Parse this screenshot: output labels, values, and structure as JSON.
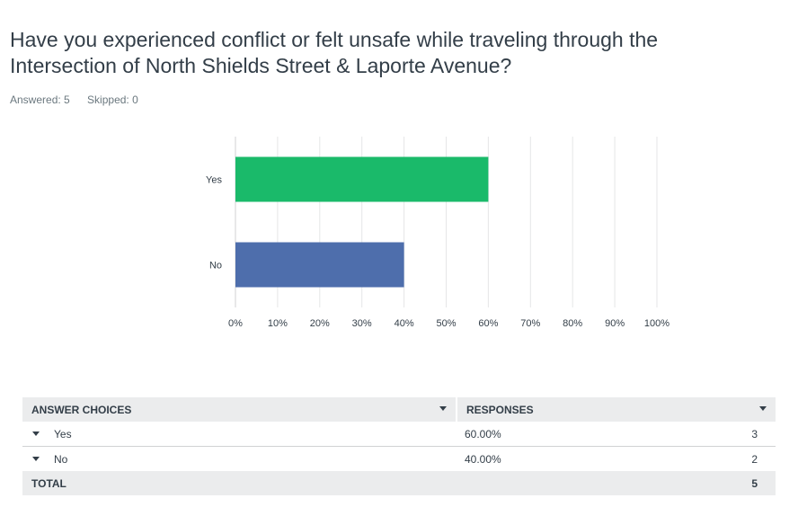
{
  "question": {
    "title": "Have you experienced conflict or felt unsafe while traveling through the Intersection of North Shields Street & Laporte Avenue?"
  },
  "stats": {
    "answered": "Answered: 5",
    "skipped": "Skipped: 0"
  },
  "chart_data": {
    "type": "bar",
    "orientation": "horizontal",
    "categories": [
      "Yes",
      "No"
    ],
    "values": [
      60,
      40
    ],
    "colors": [
      "#1aba6a",
      "#4e6eac"
    ],
    "xlim": [
      0,
      100
    ],
    "x_ticks": [
      "0%",
      "10%",
      "20%",
      "30%",
      "40%",
      "50%",
      "60%",
      "70%",
      "80%",
      "90%",
      "100%"
    ],
    "grid": true,
    "title": "",
    "xlabel": "",
    "ylabel": ""
  },
  "table": {
    "headers": {
      "choices": "ANSWER CHOICES",
      "responses": "RESPONSES"
    },
    "rows": [
      {
        "choice": "Yes",
        "percent": "60.00%",
        "count": "3"
      },
      {
        "choice": "No",
        "percent": "40.00%",
        "count": "2"
      }
    ],
    "total": {
      "label": "TOTAL",
      "count": "5"
    }
  }
}
